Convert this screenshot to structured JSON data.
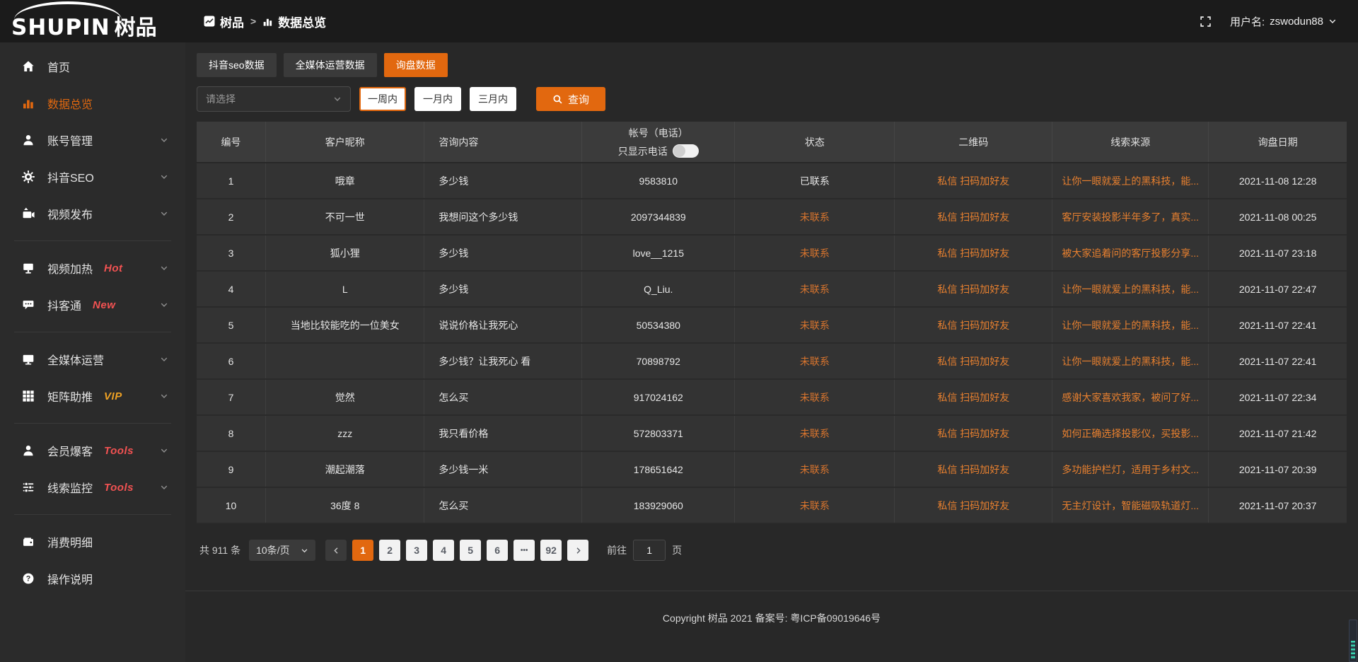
{
  "logo": {
    "text_en": "SHUPIN",
    "text_cn": "树品"
  },
  "topbar": {
    "breadcrumb": {
      "app": "树品",
      "separator": ">",
      "page": "数据总览"
    },
    "username_label": "用户名:",
    "username": "zswodun88"
  },
  "sidebar": {
    "items": [
      {
        "label": "首页",
        "icon": "home-icon",
        "active": false,
        "chevron": false,
        "divider_after": false
      },
      {
        "label": "数据总览",
        "icon": "bar-chart-icon",
        "active": true,
        "chevron": false,
        "divider_after": false
      },
      {
        "label": "账号管理",
        "icon": "user-icon",
        "active": false,
        "chevron": true,
        "divider_after": false
      },
      {
        "label": "抖音SEO",
        "icon": "gear-icon",
        "active": false,
        "chevron": true,
        "divider_after": false
      },
      {
        "label": "视频发布",
        "icon": "video-publish-icon",
        "active": false,
        "chevron": true,
        "divider_after": true
      },
      {
        "label": "视频加热",
        "icon": "monitor-icon",
        "active": false,
        "chevron": true,
        "divider_after": false,
        "badge": "Hot",
        "badge_color": "#f25252"
      },
      {
        "label": "抖客通",
        "icon": "chat-icon",
        "active": false,
        "chevron": true,
        "divider_after": true,
        "badge": "New",
        "badge_color": "#f25252"
      },
      {
        "label": "全媒体运营",
        "icon": "display-icon",
        "active": false,
        "chevron": true,
        "divider_after": false
      },
      {
        "label": "矩阵助推",
        "icon": "grid-icon",
        "active": false,
        "chevron": true,
        "divider_after": true,
        "badge": "VIP",
        "badge_color": "#efa224"
      },
      {
        "label": "会员爆客",
        "icon": "person-icon",
        "active": false,
        "chevron": true,
        "divider_after": false,
        "badge": "Tools",
        "badge_color": "#f25252"
      },
      {
        "label": "线索监控",
        "icon": "sliders-icon",
        "active": false,
        "chevron": true,
        "divider_after": true,
        "badge": "Tools",
        "badge_color": "#f25252"
      },
      {
        "label": "消费明细",
        "icon": "wallet-icon",
        "active": false,
        "chevron": false,
        "divider_after": false
      },
      {
        "label": "操作说明",
        "icon": "help-icon",
        "active": false,
        "chevron": false,
        "divider_after": false
      }
    ]
  },
  "tabs": [
    {
      "label": "抖音seo数据",
      "active": false
    },
    {
      "label": "全媒体运营数据",
      "active": false
    },
    {
      "label": "询盘数据",
      "active": true
    }
  ],
  "filters": {
    "select_placeholder": "请选择",
    "periods": [
      {
        "label": "一周内",
        "active": true
      },
      {
        "label": "一月内",
        "active": false
      },
      {
        "label": "三月内",
        "active": false
      }
    ],
    "search_label": "查询"
  },
  "table": {
    "headers": [
      "编号",
      "客户昵称",
      "咨询内容",
      "帐号（电话）",
      "状态",
      "二维码",
      "线索来源",
      "询盘日期"
    ],
    "phone_toggle_label": "只显示电话",
    "rows": [
      {
        "no": "1",
        "nickname": "哦章",
        "content": "多少钱",
        "account": "9583810",
        "status": "已联系",
        "contacted": true,
        "qr": "私信 扫码加好友",
        "source": "让你一眼就爱上的黑科技，能...",
        "date": "2021-11-08 12:28"
      },
      {
        "no": "2",
        "nickname": "不可一世",
        "content": "我想问这个多少钱",
        "account": "2097344839",
        "status": "未联系",
        "contacted": false,
        "qr": "私信 扫码加好友",
        "source": "客厅安装投影半年多了，真实...",
        "date": "2021-11-08 00:25"
      },
      {
        "no": "3",
        "nickname": "狐小狸",
        "content": "多少钱",
        "account": "love__1215",
        "status": "未联系",
        "contacted": false,
        "qr": "私信 扫码加好友",
        "source": "被大家追着问的客厅投影分享...",
        "date": "2021-11-07 23:18"
      },
      {
        "no": "4",
        "nickname": "L",
        "content": "多少钱",
        "account": "Q_Liu.",
        "status": "未联系",
        "contacted": false,
        "qr": "私信 扫码加好友",
        "source": "让你一眼就爱上的黑科技，能...",
        "date": "2021-11-07 22:47"
      },
      {
        "no": "5",
        "nickname": "当地比较能吃的一位美女",
        "content": "说说价格让我死心",
        "account": "50534380",
        "status": "未联系",
        "contacted": false,
        "qr": "私信 扫码加好友",
        "source": "让你一眼就爱上的黑科技，能...",
        "date": "2021-11-07 22:41"
      },
      {
        "no": "6",
        "nickname": "",
        "content": "多少钱？让我死心 看",
        "account": "70898792",
        "status": "未联系",
        "contacted": false,
        "qr": "私信 扫码加好友",
        "source": "让你一眼就爱上的黑科技，能...",
        "date": "2021-11-07 22:41"
      },
      {
        "no": "7",
        "nickname": "觉然",
        "content": "怎么买",
        "account": "917024162",
        "status": "未联系",
        "contacted": false,
        "qr": "私信 扫码加好友",
        "source": "感谢大家喜欢我家，被问了好...",
        "date": "2021-11-07 22:34"
      },
      {
        "no": "8",
        "nickname": "zzz",
        "content": "我只看价格",
        "account": "572803371",
        "status": "未联系",
        "contacted": false,
        "qr": "私信 扫码加好友",
        "source": "如何正确选择投影仪，买投影...",
        "date": "2021-11-07 21:42"
      },
      {
        "no": "9",
        "nickname": "潮起潮落",
        "content": "多少钱一米",
        "account": "178651642",
        "status": "未联系",
        "contacted": false,
        "qr": "私信 扫码加好友",
        "source": "多功能护栏灯，适用于乡村文...",
        "date": "2021-11-07 20:39"
      },
      {
        "no": "10",
        "nickname": "36度 8",
        "content": "怎么买",
        "account": "183929060",
        "status": "未联系",
        "contacted": false,
        "qr": "私信 扫码加好友",
        "source": "无主灯设计，智能磁吸轨道灯...",
        "date": "2021-11-07 20:37"
      }
    ]
  },
  "pagination": {
    "total_label": "共 911 条",
    "page_size": "10条/页",
    "pages": [
      "1",
      "2",
      "3",
      "4",
      "5",
      "6",
      "•••",
      "92"
    ],
    "active_page": "1",
    "goto_label": "前往",
    "goto_value": "1",
    "goto_suffix": "页"
  },
  "footer": {
    "copyright": "Copyright 树品 2021 备案号: 粤ICP备09019646号"
  },
  "colors": {
    "accent": "#E2680F",
    "link": "#E8802F",
    "badge_red": "#f25252",
    "badge_vip": "#efa224",
    "status_uncontacted": "#D9752E"
  }
}
